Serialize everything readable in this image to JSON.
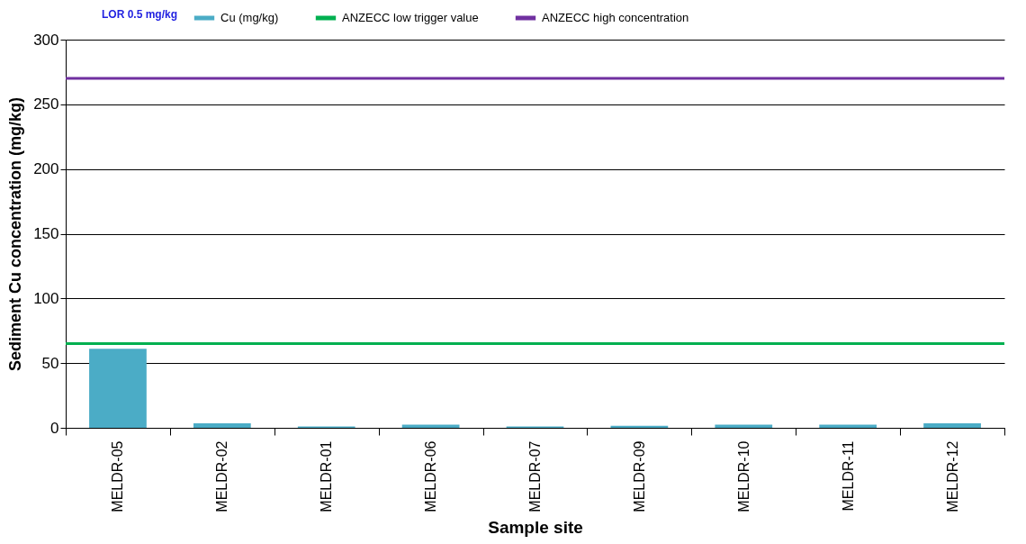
{
  "chart_data": {
    "type": "bar",
    "xlabel": "Sample site",
    "ylabel": "Sediment Cu concentration (mg/kg)",
    "categories": [
      "MELDR-05",
      "MELDR-02",
      "MELDR-01",
      "MELDR-06",
      "MELDR-07",
      "MELDR-09",
      "MELDR-10",
      "MELDR-11",
      "MELDR-12"
    ],
    "series": [
      {
        "name": "Cu (mg/kg)",
        "color": "#4bacc6",
        "values": [
          61,
          3.5,
          1,
          2.5,
          1,
          1.5,
          2.5,
          2.5,
          3.5
        ]
      }
    ],
    "ylim": [
      0,
      300
    ],
    "yticks": [
      0,
      50,
      100,
      150,
      200,
      250,
      300
    ],
    "grid": "y",
    "legend": "top",
    "ref_lines": [
      {
        "axis": "y",
        "value": 65,
        "label": "ANZECC low trigger value",
        "color": "#00b050"
      },
      {
        "axis": "y",
        "value": 270,
        "label": "ANZECC high concentration",
        "color": "#7030a0"
      }
    ],
    "annotations": [
      "LOR 0.5 mg/kg"
    ]
  }
}
